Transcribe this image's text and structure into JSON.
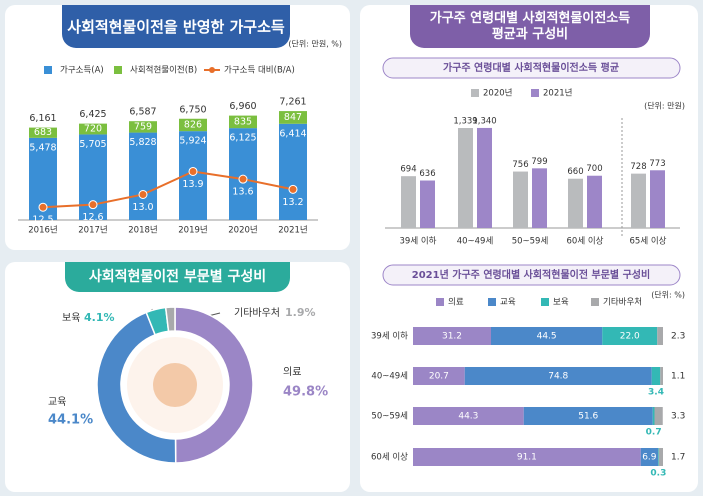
{
  "chart_data": [
    {
      "type": "bar-line",
      "title": "사회적현물이전을 반영한 가구소득",
      "unit": "(단위: 만원, %)",
      "categories": [
        "2016년",
        "2017년",
        "2018년",
        "2019년",
        "2020년",
        "2021년"
      ],
      "series": [
        {
          "name": "가구소득(A)",
          "color": "#3a8fd6",
          "values": [
            5478,
            5705,
            5828,
            5924,
            6125,
            6414
          ],
          "value_labels": [
            "5,478",
            "5,705",
            "5,828",
            "5,924",
            "6,125",
            "6,414"
          ]
        },
        {
          "name": "사회적현물이전(B)",
          "color": "#7bbf3f",
          "values": [
            683,
            720,
            759,
            826,
            835,
            847
          ]
        },
        {
          "name": "가구소득 대비(B/A)",
          "color": "#e86f2a",
          "axis": "y2",
          "values": [
            12.5,
            12.6,
            13.0,
            13.9,
            13.6,
            13.2
          ],
          "value_labels": [
            "12.5",
            "12.6",
            "13.0",
            "13.9",
            "13.6",
            "13.2"
          ]
        }
      ],
      "totals": [
        {
          "value": 6161,
          "label": "6,161"
        },
        {
          "value": 6425,
          "label": "6,425"
        },
        {
          "value": 6587,
          "label": "6,587"
        },
        {
          "value": 6750,
          "label": "6,750"
        },
        {
          "value": 6960,
          "label": "6,960"
        },
        {
          "value": 7261,
          "label": "7,261"
        }
      ],
      "stacked": true,
      "ylim": [
        0,
        8000
      ],
      "y2lim": [
        12,
        16.7
      ]
    },
    {
      "type": "donut",
      "title": "사회적현물이전 부문별 구성비",
      "categories": [
        "의료",
        "교육",
        "보육",
        "기타바우처"
      ],
      "values": [
        49.8,
        44.1,
        4.1,
        1.9
      ],
      "value_labels": [
        "49.8%",
        "44.1%",
        "4.1%",
        "1.9%"
      ],
      "colors": [
        "#9b86c6",
        "#4b88c9",
        "#33b8b5",
        "#a8a9ab"
      ]
    },
    {
      "type": "bar",
      "section_title": "가구주 연령대별 사회적현물이전소득 평균과 구성비",
      "title": "가구주 연령대별 사회적현물이전소득 평균",
      "unit": "(단위: 만원)",
      "categories": [
        "39세 이하",
        "40~49세",
        "50~59세",
        "60세 이상",
        "65세 이상"
      ],
      "series": [
        {
          "name": "2020년",
          "color": "#b9bbbd",
          "values": [
            694,
            1339,
            756,
            660,
            728
          ],
          "value_labels": [
            "694",
            "1,339",
            "756",
            "660",
            "728"
          ]
        },
        {
          "name": "2021년",
          "color": "#9d86c8",
          "values": [
            636,
            1340,
            799,
            700,
            773
          ],
          "value_labels": [
            "636",
            "1,340",
            "799",
            "700",
            "773"
          ]
        }
      ],
      "ylim": [
        0,
        1500
      ]
    },
    {
      "type": "stacked-barh",
      "title": "2021년 가구주 연령대별 사회적현물이전 부문별 구성비",
      "unit": "(단위: %)",
      "categories": [
        "39세 이하",
        "40~49세",
        "50~59세",
        "60세 이상"
      ],
      "series": [
        {
          "name": "의료",
          "color": "#9b86c6",
          "values": [
            31.2,
            20.7,
            44.3,
            91.1
          ]
        },
        {
          "name": "교육",
          "color": "#4b88c9",
          "values": [
            44.5,
            74.8,
            51.6,
            6.9
          ]
        },
        {
          "name": "보육",
          "color": "#33b8b5",
          "values": [
            22.0,
            3.4,
            0.7,
            0.3
          ],
          "value_labels": [
            "22.0",
            "3.4",
            "0.7",
            "0.3"
          ]
        },
        {
          "name": "기타바우처",
          "color": "#a8a9ab",
          "values": [
            2.3,
            1.1,
            3.3,
            1.7
          ]
        }
      ],
      "xlim": [
        0,
        100
      ]
    }
  ]
}
